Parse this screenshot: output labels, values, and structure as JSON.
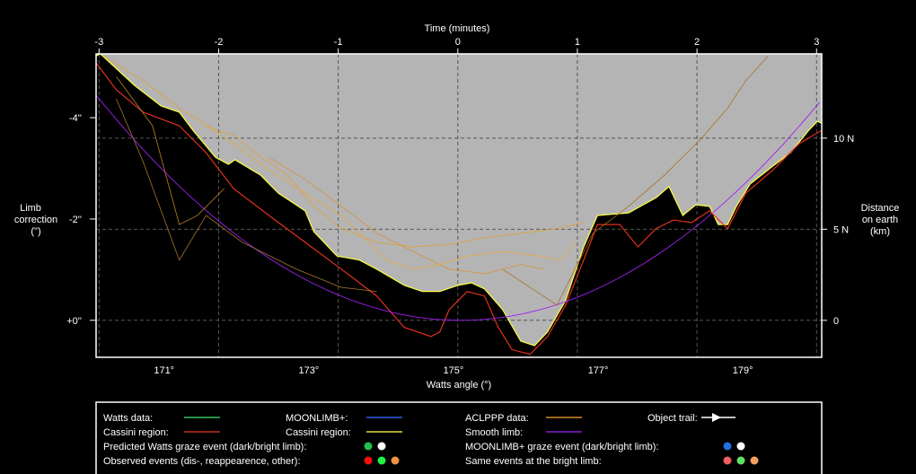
{
  "chart_data": {
    "type": "line",
    "title": "Time (minutes)",
    "xlabel": "Watts angle (°)",
    "ylabel_left": [
      "Limb",
      "correction",
      "(\")"
    ],
    "ylabel_right": [
      "Distance",
      "on earth",
      "(km)"
    ],
    "xlim": [
      170.06,
      180.09
    ],
    "ylim": [
      -5.26,
      0.73
    ],
    "x_ticks": [
      {
        "v": 171,
        "label": "171°"
      },
      {
        "v": 173,
        "label": "173°"
      },
      {
        "v": 175,
        "label": "175°"
      },
      {
        "v": 177,
        "label": "177°"
      },
      {
        "v": 179,
        "label": "179°"
      }
    ],
    "time_ticks": [
      {
        "v": -3,
        "label": "-3"
      },
      {
        "v": -2,
        "label": "-2"
      },
      {
        "v": -1,
        "label": "-1"
      },
      {
        "v": 0,
        "label": "0"
      },
      {
        "v": 1,
        "label": "1"
      },
      {
        "v": 2,
        "label": "2"
      },
      {
        "v": 3,
        "label": "3"
      }
    ],
    "time_axis": {
      "minute0_angle": 175.06,
      "degrees_per_minute": 1.653
    },
    "y_ticks_left": [
      {
        "v": -4,
        "label": "-4''"
      },
      {
        "v": -2,
        "label": "-2''"
      },
      {
        "v": 0,
        "label": "+0''"
      }
    ],
    "y_ticks_right": [
      {
        "km": 10,
        "label": "10 N"
      },
      {
        "km": 5,
        "label": "5 N"
      },
      {
        "km": 0,
        "label": "0"
      }
    ],
    "km_per_arcsec": 2.78,
    "grid": true,
    "colors": {
      "bg_sky": "#b4b4b4",
      "moon": "#000000",
      "profile_edge": "#ffff40",
      "cassini": "#e03020",
      "smooth": "#a020f0",
      "aclppp": "#d08a20"
    },
    "series": [
      {
        "name": "Limb profile (Cassini region)",
        "color": "#ffff40",
        "points": [
          [
            170.06,
            -5.22
          ],
          [
            170.12,
            -5.26
          ],
          [
            170.59,
            -4.64
          ],
          [
            170.96,
            -4.23
          ],
          [
            171.21,
            -4.11
          ],
          [
            171.4,
            -3.75
          ],
          [
            171.71,
            -3.22
          ],
          [
            171.89,
            -3.08
          ],
          [
            171.98,
            -3.17
          ],
          [
            172.33,
            -2.87
          ],
          [
            172.58,
            -2.51
          ],
          [
            172.95,
            -2.16
          ],
          [
            173.07,
            -1.75
          ],
          [
            173.39,
            -1.27
          ],
          [
            173.7,
            -1.19
          ],
          [
            173.94,
            -1.01
          ],
          [
            174.32,
            -0.69
          ],
          [
            174.57,
            -0.57
          ],
          [
            174.81,
            -0.57
          ],
          [
            175.06,
            -0.69
          ],
          [
            175.25,
            -0.74
          ],
          [
            175.43,
            -0.62
          ],
          [
            175.68,
            -0.21
          ],
          [
            175.93,
            0.41
          ],
          [
            176.12,
            0.5
          ],
          [
            176.3,
            0.23
          ],
          [
            176.55,
            -0.39
          ],
          [
            176.8,
            -1.45
          ],
          [
            176.99,
            -2.07
          ],
          [
            177.42,
            -2.12
          ],
          [
            177.8,
            -2.42
          ],
          [
            177.98,
            -2.64
          ],
          [
            178.17,
            -2.07
          ],
          [
            178.35,
            -2.28
          ],
          [
            178.54,
            -2.25
          ],
          [
            178.66,
            -1.89
          ],
          [
            178.79,
            -1.89
          ],
          [
            178.91,
            -2.25
          ],
          [
            179.1,
            -2.69
          ],
          [
            179.41,
            -3.04
          ],
          [
            179.66,
            -3.31
          ],
          [
            179.91,
            -3.75
          ],
          [
            180.03,
            -3.93
          ],
          [
            180.09,
            -3.89
          ]
        ]
      },
      {
        "name": "Cassini region (Watts)",
        "color": "#e03020",
        "points": [
          [
            170.06,
            -5.08
          ],
          [
            170.34,
            -4.55
          ],
          [
            170.71,
            -4.11
          ],
          [
            171.21,
            -3.84
          ],
          [
            171.58,
            -3.31
          ],
          [
            171.96,
            -2.6
          ],
          [
            172.45,
            -2.07
          ],
          [
            172.95,
            -1.54
          ],
          [
            173.45,
            -1.01
          ],
          [
            173.94,
            -0.48
          ],
          [
            174.32,
            0.14
          ],
          [
            174.69,
            0.32
          ],
          [
            174.81,
            0.23
          ],
          [
            174.94,
            -0.21
          ],
          [
            175.19,
            -0.57
          ],
          [
            175.43,
            -0.48
          ],
          [
            175.62,
            0.14
          ],
          [
            175.81,
            0.58
          ],
          [
            176.06,
            0.67
          ],
          [
            176.3,
            0.32
          ],
          [
            176.55,
            -0.3
          ],
          [
            176.8,
            -1.19
          ],
          [
            176.99,
            -1.89
          ],
          [
            177.3,
            -1.89
          ],
          [
            177.55,
            -1.45
          ],
          [
            177.8,
            -1.81
          ],
          [
            178.04,
            -1.98
          ],
          [
            178.29,
            -1.93
          ],
          [
            178.54,
            -2.16
          ],
          [
            178.79,
            -1.81
          ],
          [
            179.04,
            -2.51
          ],
          [
            179.41,
            -2.96
          ],
          [
            179.78,
            -3.49
          ],
          [
            180.09,
            -3.75
          ]
        ]
      },
      {
        "name": "Smooth limb",
        "color": "#a020f0",
        "function": "-0.175*(x-175.1)^2"
      },
      {
        "name": "ACLPPP data 1",
        "color": "#e0a030",
        "points": [
          [
            170.16,
            -5.22
          ],
          [
            170.71,
            -4.73
          ],
          [
            171.21,
            -4.19
          ],
          [
            171.71,
            -3.75
          ],
          [
            171.96,
            -3.66
          ],
          [
            172.33,
            -3.22
          ],
          [
            172.7,
            -2.87
          ],
          [
            173.07,
            -2.25
          ],
          [
            173.45,
            -1.81
          ],
          [
            173.94,
            -1.54
          ],
          [
            174.44,
            -1.45
          ],
          [
            174.94,
            -1.5
          ],
          [
            175.43,
            -1.63
          ],
          [
            175.93,
            -1.72
          ],
          [
            176.43,
            -1.81
          ],
          [
            176.8,
            -1.93
          ]
        ]
      },
      {
        "name": "ACLPPP data 2",
        "color": "#c88a28",
        "points": [
          [
            170.34,
            -4.81
          ],
          [
            170.84,
            -3.84
          ],
          [
            171.21,
            -1.89
          ],
          [
            171.46,
            -2.07
          ],
          [
            171.83,
            -2.6
          ]
        ]
      },
      {
        "name": "ACLPPP data 3",
        "color": "#a87020",
        "points": [
          [
            175.68,
            -1.01
          ],
          [
            176.43,
            -0.3
          ],
          [
            176.93,
            -1.72
          ],
          [
            177.42,
            -2.25
          ],
          [
            177.92,
            -2.87
          ],
          [
            178.42,
            -3.58
          ],
          [
            178.79,
            -4.19
          ],
          [
            179.04,
            -4.73
          ],
          [
            179.35,
            -5.22
          ]
        ]
      },
      {
        "name": "ACLPPP data 4",
        "color": "#d89030",
        "points": [
          [
            172.45,
            -3.22
          ],
          [
            172.95,
            -2.78
          ],
          [
            173.45,
            -2.25
          ],
          [
            173.94,
            -1.72
          ],
          [
            174.44,
            -1.36
          ],
          [
            174.94,
            -1.01
          ],
          [
            175.43,
            -0.92
          ],
          [
            175.93,
            -1.1
          ],
          [
            176.24,
            -1.01
          ]
        ]
      },
      {
        "name": "ACLPPP data 5",
        "color": "#b07a28",
        "points": [
          [
            170.34,
            -4.37
          ],
          [
            170.71,
            -3.13
          ],
          [
            171.21,
            -1.19
          ],
          [
            171.58,
            -2.07
          ],
          [
            172.08,
            -1.54
          ],
          [
            172.83,
            -1.01
          ],
          [
            173.45,
            -0.65
          ],
          [
            173.94,
            -0.57
          ]
        ]
      },
      {
        "name": "ACLPPP data 6",
        "color": "#e8a838",
        "points": [
          [
            171.58,
            -3.84
          ],
          [
            171.96,
            -3.49
          ],
          [
            172.45,
            -2.96
          ],
          [
            172.95,
            -2.51
          ],
          [
            173.45,
            -2.07
          ],
          [
            173.7,
            -1.72
          ],
          [
            174.07,
            -1.19
          ],
          [
            174.44,
            -1.01
          ],
          [
            174.81,
            -1.1
          ],
          [
            175.19,
            -1.27
          ],
          [
            175.68,
            -1.36
          ],
          [
            176.18,
            -1.27
          ],
          [
            176.49,
            -1.19
          ],
          [
            176.68,
            -1.54
          ]
        ]
      }
    ]
  },
  "legend": {
    "items": [
      {
        "label": "Watts data:",
        "swatch": [
          "#30c060",
          "#60e080"
        ]
      },
      {
        "label": "MOONLIMB+:",
        "swatch": [
          "#3060e0",
          "#60c0ff"
        ]
      },
      {
        "label": "ACLPPP data:",
        "swatch": [
          "#d08a20",
          "#f0b060"
        ]
      },
      {
        "label": "Object trail:",
        "swatch": [
          "#ffffff"
        ]
      },
      {
        "label": "Cassini region:",
        "swatch": [
          "#c03020",
          "#ff6040"
        ]
      },
      {
        "label": "Cassini region:",
        "swatch": [
          "#e0e040",
          "#ffff80"
        ]
      },
      {
        "label": "Smooth limb:",
        "swatch": [
          "#8020d0",
          "#a040ff"
        ]
      }
    ],
    "events": [
      {
        "label": "Predicted Watts graze event (dark/bright limb):",
        "dots": [
          "#20c050",
          "#ffffff"
        ]
      },
      {
        "label": "MOONLIMB+ graze event (dark/bright limb):",
        "dots": [
          "#2070e0",
          "#ffffff"
        ]
      },
      {
        "label": "Observed events (dis-, reappearence, other):",
        "dots": [
          "#f01010",
          "#20f040",
          "#f09040"
        ]
      },
      {
        "label": "Same events at the bright limb:",
        "dots": [
          "#f06060",
          "#60e060",
          "#f0a060"
        ]
      }
    ]
  }
}
